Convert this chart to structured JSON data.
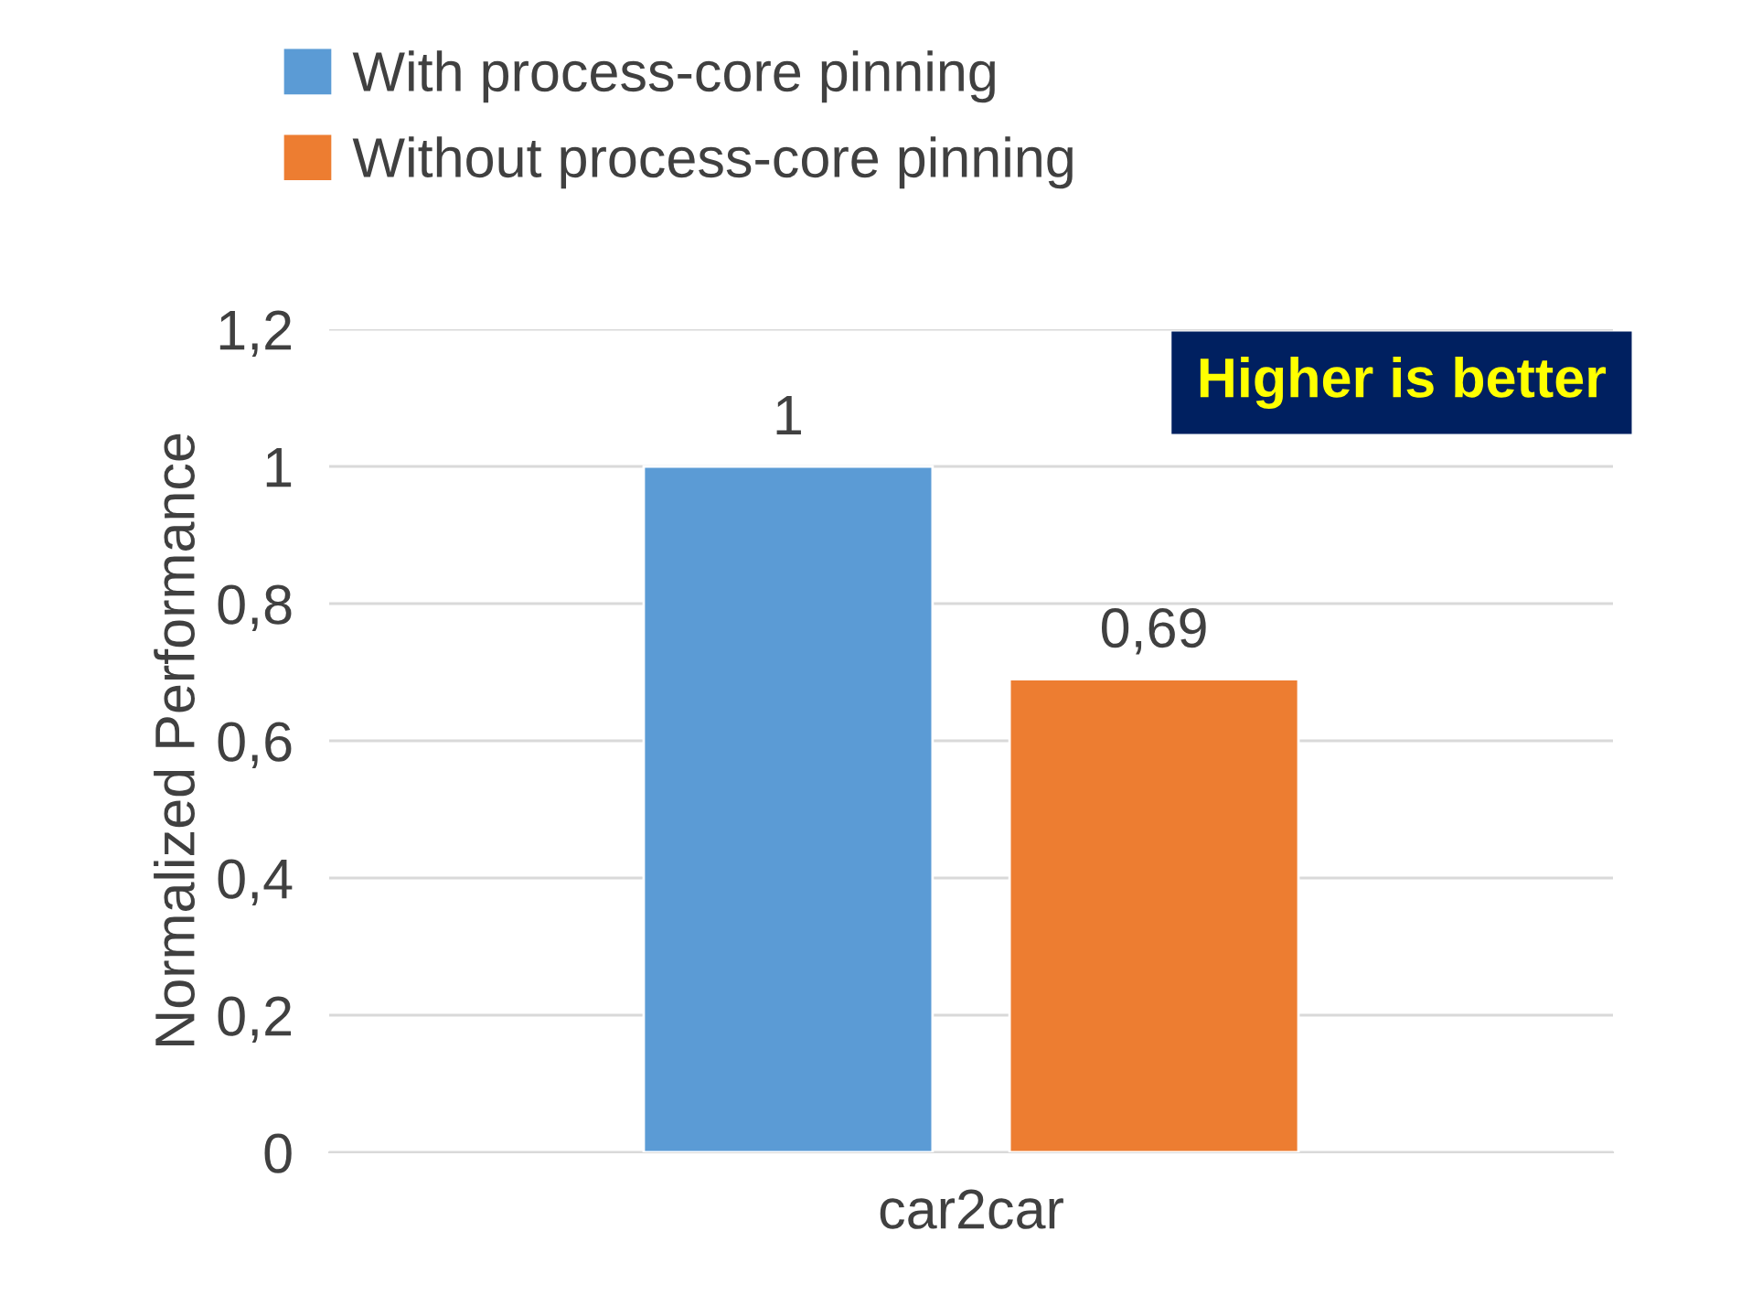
{
  "chart_data": {
    "type": "bar",
    "ylabel": "Normalized Performance",
    "categories": [
      "car2car"
    ],
    "series": [
      {
        "name": "With process-core pinning",
        "color": "#5b9bd5",
        "values": [
          1
        ],
        "value_labels": [
          "1"
        ]
      },
      {
        "name": "Without process-core pinning",
        "color": "#ed7d31",
        "values": [
          0.69
        ],
        "value_labels": [
          "0,69"
        ]
      }
    ],
    "ylim": [
      0,
      1.2
    ],
    "yticks": [
      0,
      {
        "value": 0.2,
        "label": "0,2"
      },
      {
        "value": 0.4,
        "label": "0,4"
      },
      {
        "value": 0.6,
        "label": "0,6"
      },
      {
        "value": 0.8,
        "label": "0,8"
      },
      1,
      {
        "value": 1.2,
        "label": "1,2"
      }
    ],
    "grid": "y",
    "legend": "top left",
    "annotations": [
      "Higher is better"
    ]
  }
}
